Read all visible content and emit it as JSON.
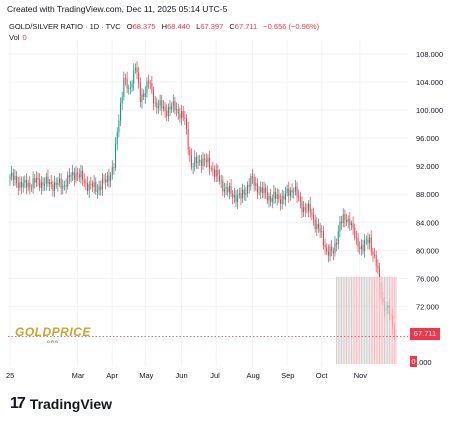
{
  "header": {
    "credit": "Created with TradingView.com, Dec 11, 2025 05:14 UTC-5",
    "symbol": "GOLD/SILVER RATIO · 1D · TVC",
    "open_label": "O",
    "open": "68.375",
    "high_label": "H",
    "high": "68.440",
    "low_label": "L",
    "low": "67.397",
    "close_label": "C",
    "close": "67.711",
    "change": "−0.656 (−0.96%)",
    "vol_label": "Vol",
    "vol_value": "0"
  },
  "price_tag": "67.711",
  "vol_tag": "0",
  "vol_axis_tail": ".000",
  "watermark": {
    "main": "GOLDPRICE",
    "sub": "ORG"
  },
  "footer": {
    "brand": "TradingView",
    "logo": "17"
  },
  "colors": {
    "up": "#089981",
    "down": "#f23645",
    "grid": "#f0f3fa",
    "text": "#131722"
  },
  "chart_data": {
    "type": "candlestick",
    "title": "GOLD/SILVER RATIO",
    "ylim": [
      63.5,
      110
    ],
    "y_ticks": [
      108,
      104,
      100,
      96,
      92,
      88,
      84,
      80,
      76,
      72
    ],
    "y_tick_labels": [
      "108.000",
      "104.000",
      "100.000",
      "96.000",
      "92.000",
      "88.000",
      "84.000",
      "80.000",
      "76.000",
      "72.000"
    ],
    "x_ticks": [
      {
        "label": "25",
        "i": 0
      },
      {
        "label": "Mar",
        "i": 41
      },
      {
        "label": "Apr",
        "i": 62
      },
      {
        "label": "May",
        "i": 82
      },
      {
        "label": "Jun",
        "i": 104
      },
      {
        "label": "Jul",
        "i": 125
      },
      {
        "label": "Aug",
        "i": 147
      },
      {
        "label": "Sep",
        "i": 168
      },
      {
        "label": "Oct",
        "i": 189
      },
      {
        "label": "Nov",
        "i": 212
      }
    ],
    "n_bars": 235,
    "last_close": 67.711,
    "series": [
      {
        "i": 0,
        "close": 90.5
      },
      {
        "i": 8,
        "close": 89.2
      },
      {
        "i": 16,
        "close": 89.8
      },
      {
        "i": 24,
        "close": 89.5
      },
      {
        "i": 32,
        "close": 89.3
      },
      {
        "i": 40,
        "close": 91.2
      },
      {
        "i": 46,
        "close": 89.5
      },
      {
        "i": 52,
        "close": 88.8
      },
      {
        "i": 58,
        "close": 89.8
      },
      {
        "i": 63,
        "close": 92.0
      },
      {
        "i": 66,
        "close": 99.0
      },
      {
        "i": 69,
        "close": 104.5
      },
      {
        "i": 72,
        "close": 102.5
      },
      {
        "i": 76,
        "close": 106.5
      },
      {
        "i": 79,
        "close": 101.5
      },
      {
        "i": 84,
        "close": 104.0
      },
      {
        "i": 88,
        "close": 101.0
      },
      {
        "i": 94,
        "close": 100.0
      },
      {
        "i": 100,
        "close": 100.5
      },
      {
        "i": 106,
        "close": 98.5
      },
      {
        "i": 110,
        "close": 92.0
      },
      {
        "i": 116,
        "close": 93.0
      },
      {
        "i": 122,
        "close": 92.0
      },
      {
        "i": 128,
        "close": 89.5
      },
      {
        "i": 134,
        "close": 88.0
      },
      {
        "i": 140,
        "close": 87.5
      },
      {
        "i": 146,
        "close": 90.0
      },
      {
        "i": 152,
        "close": 88.5
      },
      {
        "i": 158,
        "close": 87.5
      },
      {
        "i": 166,
        "close": 87.5
      },
      {
        "i": 172,
        "close": 89.0
      },
      {
        "i": 176,
        "close": 86.5
      },
      {
        "i": 182,
        "close": 85.5
      },
      {
        "i": 188,
        "close": 82.5
      },
      {
        "i": 192,
        "close": 80.0
      },
      {
        "i": 196,
        "close": 79.5
      },
      {
        "i": 200,
        "close": 84.0
      },
      {
        "i": 206,
        "close": 84.5
      },
      {
        "i": 210,
        "close": 81.0
      },
      {
        "i": 214,
        "close": 80.5
      },
      {
        "i": 218,
        "close": 81.5
      },
      {
        "i": 222,
        "close": 78.0
      },
      {
        "i": 226,
        "close": 72.5
      },
      {
        "i": 230,
        "close": 71.0
      },
      {
        "i": 234,
        "close": 67.711
      }
    ]
  }
}
